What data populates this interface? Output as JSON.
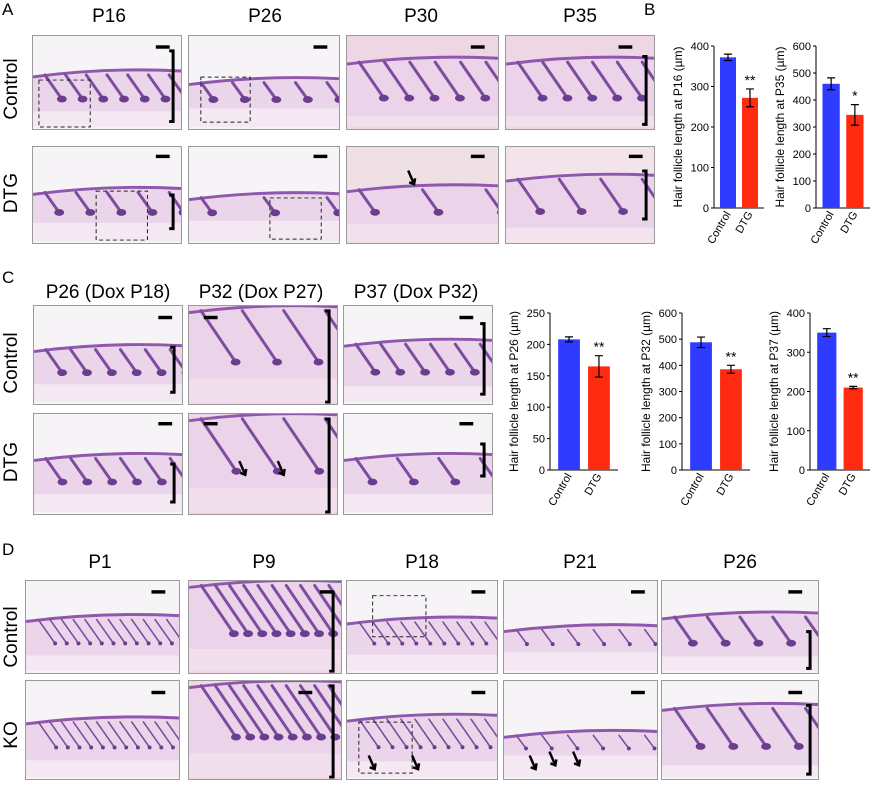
{
  "panel_letters": [
    "A",
    "B",
    "C",
    "D"
  ],
  "panel_a": {
    "columns": [
      "P16",
      "P26",
      "P30",
      "P35"
    ],
    "rows": [
      "Control",
      "DTG"
    ]
  },
  "panel_c": {
    "columns": [
      "P26 (Dox P18)",
      "P32 (Dox P27)",
      "P37 (Dox P32)"
    ],
    "rows": [
      "Control",
      "DTG"
    ]
  },
  "panel_d": {
    "columns": [
      "P1",
      "P9",
      "P18",
      "P21",
      "P26"
    ],
    "rows": [
      "Control",
      "KO"
    ]
  },
  "colors": {
    "control": "#2f3bff",
    "dtg": "#ff2a10",
    "tissue_light": "#ead8ec",
    "tissue_dark": "#8a55a8"
  },
  "chart_data": [
    {
      "type": "bar",
      "categories": [
        "Control",
        "DTG"
      ],
      "values": [
        372,
        272
      ],
      "errors": [
        8,
        22
      ],
      "significance": [
        "",
        "**"
      ],
      "ylabel": "Hair follicle length at P16 (µm)",
      "ylim": [
        0,
        400
      ],
      "yticks": [
        0,
        100,
        200,
        300,
        400
      ]
    },
    {
      "type": "bar",
      "categories": [
        "Control",
        "DTG"
      ],
      "values": [
        460,
        345
      ],
      "errors": [
        22,
        38
      ],
      "significance": [
        "",
        "*"
      ],
      "ylabel": "Hair follicle length at P35 (µm)",
      "ylim": [
        0,
        600
      ],
      "yticks": [
        0,
        100,
        200,
        300,
        400,
        500,
        600
      ]
    },
    {
      "type": "bar",
      "categories": [
        "Control",
        "DTG"
      ],
      "values": [
        208,
        165
      ],
      "errors": [
        4,
        17
      ],
      "significance": [
        "",
        "**"
      ],
      "ylabel": "Hair follicle length at P26 (µm)",
      "ylim": [
        0,
        250
      ],
      "yticks": [
        0,
        50,
        100,
        150,
        200,
        250
      ]
    },
    {
      "type": "bar",
      "categories": [
        "Control",
        "DTG"
      ],
      "values": [
        488,
        385
      ],
      "errors": [
        20,
        15
      ],
      "significance": [
        "",
        "**"
      ],
      "ylabel": "Hair follicle length at P32 (µm)",
      "ylim": [
        0,
        600
      ],
      "yticks": [
        0,
        100,
        200,
        300,
        400,
        500,
        600
      ]
    },
    {
      "type": "bar",
      "categories": [
        "Control",
        "DTG"
      ],
      "values": [
        350,
        210
      ],
      "errors": [
        10,
        3
      ],
      "significance": [
        "",
        "**"
      ],
      "ylabel": "Hair follicle length at P37 (µm)",
      "ylim": [
        0,
        400
      ],
      "yticks": [
        0,
        100,
        200,
        300,
        400
      ]
    }
  ]
}
